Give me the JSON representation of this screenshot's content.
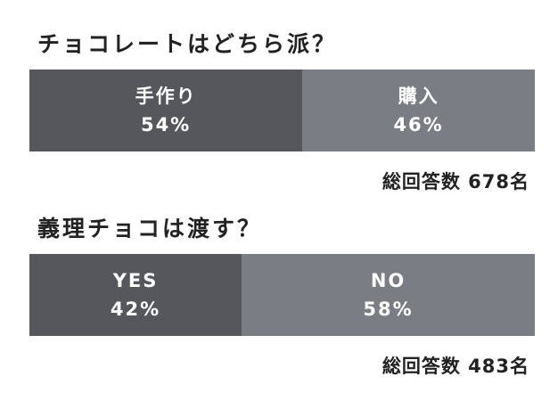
{
  "chart_data": [
    {
      "type": "bar",
      "title": "チョコレートはどちら派？",
      "categories": [
        "手作り",
        "購入"
      ],
      "values": [
        54,
        46
      ],
      "value_labels": [
        "54%",
        "46%"
      ],
      "total_label": "総回答数 678名",
      "colors": [
        "#55575c",
        "#7a7d84"
      ]
    },
    {
      "type": "bar",
      "title": "義理チョコは渡す？",
      "categories": [
        "YES",
        "NO"
      ],
      "values": [
        42,
        58
      ],
      "value_labels": [
        "42%",
        "58%"
      ],
      "total_label": "総回答数 483名",
      "colors": [
        "#55575c",
        "#7a7d84"
      ]
    }
  ]
}
